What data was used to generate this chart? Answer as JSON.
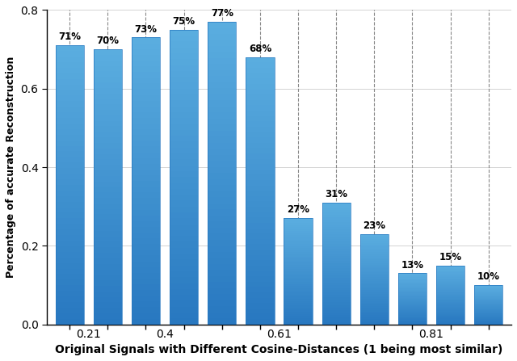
{
  "x_positions": [
    1,
    2,
    3,
    4,
    5,
    6,
    7,
    8,
    9,
    10,
    11,
    12
  ],
  "values": [
    0.71,
    0.7,
    0.73,
    0.75,
    0.77,
    0.68,
    0.27,
    0.31,
    0.23,
    0.13,
    0.15,
    0.1
  ],
  "labels": [
    "71%",
    "70%",
    "73%",
    "75%",
    "77%",
    "68%",
    "27%",
    "31%",
    "23%",
    "13%",
    "15%",
    "10%"
  ],
  "bar_color_top": "#5baee0",
  "bar_color_bottom": "#2878c0",
  "bar_width": 0.75,
  "xlabel": "Original Signals with Different Cosine-Distances (1 being most similar)",
  "ylabel": "Percentage of accurate Reconstruction",
  "ylim": [
    0,
    0.8
  ],
  "yticks": [
    0,
    0.2,
    0.4,
    0.6,
    0.8
  ],
  "xtick_positions": [
    1.5,
    3.5,
    6.5,
    10.5
  ],
  "xtick_labels": [
    "0.21",
    "0.4",
    "0.61",
    "0.81"
  ],
  "label_fontsize": 8.5,
  "xlabel_fontsize": 10,
  "ylabel_fontsize": 9,
  "tick_fontsize": 10,
  "background_color": "#ffffff",
  "grid_color": "#888888",
  "hgrid_color": "#cccccc"
}
